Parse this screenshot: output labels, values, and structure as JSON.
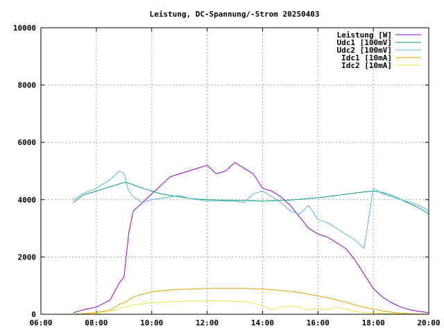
{
  "chart_data": {
    "type": "line",
    "title": "Leistung, DC-Spannung/-Strom 20250403",
    "xlabel": "",
    "ylabel": "",
    "xlim": [
      "06:00",
      "20:00"
    ],
    "ylim": [
      0,
      10000
    ],
    "x_ticks": [
      "06:00",
      "08:00",
      "10:00",
      "12:00",
      "14:00",
      "16:00",
      "18:00",
      "20:00"
    ],
    "y_ticks": [
      "0",
      "2000",
      "4000",
      "6000",
      "8000",
      "10000"
    ],
    "grid": true,
    "legend_position": "top-right",
    "x": [
      "07:10",
      "07:30",
      "08:00",
      "08:30",
      "08:50",
      "09:00",
      "09:10",
      "09:20",
      "09:40",
      "10:00",
      "10:20",
      "10:40",
      "11:00",
      "11:20",
      "11:40",
      "12:00",
      "12:20",
      "12:40",
      "13:00",
      "13:20",
      "13:40",
      "14:00",
      "14:20",
      "14:40",
      "15:00",
      "15:20",
      "15:40",
      "16:00",
      "16:20",
      "16:40",
      "17:00",
      "17:20",
      "17:40",
      "18:00",
      "18:20",
      "18:40",
      "19:00",
      "19:20",
      "19:40",
      "20:00"
    ],
    "series": [
      {
        "name": "Leistung [W]",
        "color": "#9400d3",
        "values": [
          50,
          150,
          250,
          500,
          1100,
          1300,
          2800,
          3600,
          3900,
          4200,
          4500,
          4800,
          4900,
          5000,
          5100,
          5200,
          4900,
          5000,
          5300,
          5100,
          4900,
          4400,
          4300,
          4100,
          3800,
          3400,
          3000,
          2800,
          2700,
          2500,
          2300,
          1900,
          1400,
          900,
          600,
          400,
          250,
          150,
          100,
          50
        ]
      },
      {
        "name": "Udc1 [100mV]",
        "color": "#009e73",
        "values": [
          3900,
          4150,
          4300,
          4450,
          4550,
          4600,
          4580,
          4520,
          4400,
          4300,
          4200,
          4150,
          4100,
          4050,
          4020,
          4000,
          3990,
          3980,
          3970,
          3970,
          3960,
          3950,
          3960,
          3970,
          3990,
          4010,
          4040,
          4070,
          4100,
          4150,
          4190,
          4230,
          4270,
          4300,
          4250,
          4150,
          4000,
          3850,
          3700,
          3500
        ]
      },
      {
        "name": "Udc2 [100mV]",
        "color": "#56b4e9",
        "values": [
          4000,
          4200,
          4400,
          4700,
          5000,
          4900,
          4300,
          4100,
          3900,
          4000,
          4050,
          4100,
          4150,
          4050,
          4000,
          3950,
          3950,
          3950,
          3950,
          3900,
          4200,
          4300,
          4100,
          3900,
          3600,
          3500,
          3800,
          3300,
          3200,
          3000,
          2800,
          2600,
          2300,
          4400,
          4200,
          4100,
          4000,
          3900,
          3800,
          3600
        ]
      },
      {
        "name": "Idc1 [10mA]",
        "color": "#e69f00",
        "values": [
          0,
          20,
          60,
          150,
          350,
          400,
          500,
          600,
          700,
          780,
          820,
          850,
          870,
          880,
          890,
          900,
          900,
          900,
          900,
          900,
          890,
          880,
          860,
          830,
          800,
          760,
          700,
          640,
          580,
          500,
          420,
          330,
          250,
          180,
          120,
          70,
          40,
          20,
          10,
          0
        ]
      },
      {
        "name": "Idc2 [10mA]",
        "color": "#f0e442",
        "values": [
          0,
          10,
          40,
          100,
          200,
          250,
          280,
          320,
          360,
          400,
          420,
          440,
          450,
          460,
          460,
          470,
          470,
          460,
          450,
          440,
          380,
          300,
          150,
          250,
          300,
          250,
          150,
          200,
          150,
          250,
          180,
          100,
          60,
          40,
          30,
          20,
          10,
          5,
          0,
          0
        ]
      }
    ]
  }
}
